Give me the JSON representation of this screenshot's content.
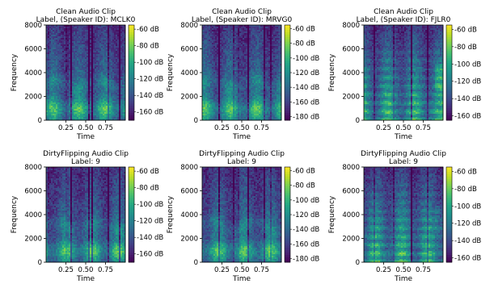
{
  "colors": {
    "colormap": "viridis",
    "axis": "#000000",
    "background": "#ffffff"
  },
  "chart_data": [
    {
      "type": "heatmap",
      "title": "Clean Audio Clip",
      "subtitle": "Label, (Speaker ID): MCLK0",
      "xlabel": "Time",
      "ylabel": "Frequency",
      "x_ticks": [
        "0.25",
        "0.50",
        "0.75"
      ],
      "x_tick_values": [
        0.25,
        0.5,
        0.75
      ],
      "y_ticks": [
        "0",
        "2000",
        "4000",
        "6000",
        "8000"
      ],
      "y_tick_values": [
        0,
        2000,
        4000,
        6000,
        8000
      ],
      "xlim": [
        0,
        1.0
      ],
      "ylim": [
        0,
        8000
      ],
      "colorbar": {
        "label_values": [
          -60,
          -80,
          -100,
          -120,
          -140,
          -160
        ],
        "labels": [
          "-60 dB",
          "-80 dB",
          "-100 dB",
          "-120 dB",
          "-140 dB",
          "-160 dB"
        ],
        "range": [
          -170,
          -55
        ]
      },
      "silence_gaps": [
        0.04,
        0.265,
        0.32,
        0.545,
        0.58,
        0.78,
        0.93
      ],
      "pattern": "voiced"
    },
    {
      "type": "heatmap",
      "title": "Clean Audio Clip",
      "subtitle": "Label, (Speaker ID): MRVG0",
      "xlabel": "Time",
      "ylabel": "Frequency",
      "x_ticks": [
        "0.25",
        "0.50",
        "0.75"
      ],
      "x_tick_values": [
        0.25,
        0.5,
        0.75
      ],
      "y_ticks": [
        "0",
        "2000",
        "4000",
        "6000",
        "8000"
      ],
      "y_tick_values": [
        0,
        2000,
        4000,
        6000,
        8000
      ],
      "xlim": [
        0,
        1.0
      ],
      "ylim": [
        0,
        8000
      ],
      "colorbar": {
        "label_values": [
          -60,
          -80,
          -100,
          -120,
          -140,
          -160,
          -180
        ],
        "labels": [
          "-60 dB",
          "-80 dB",
          "-100 dB",
          "-120 dB",
          "-140 dB",
          "-160 dB",
          "-180 dB"
        ],
        "range": [
          -185,
          -55
        ]
      },
      "silence_gaps": [
        0.21,
        0.39,
        0.45,
        0.585,
        0.78,
        0.875
      ],
      "pattern": "voiced"
    },
    {
      "type": "heatmap",
      "title": "Clean Audio Clip",
      "subtitle": "Label, (Speaker ID): FJLR0",
      "xlabel": "Time",
      "ylabel": "Frequency",
      "x_ticks": [
        "0.25",
        "0.50",
        "0.75"
      ],
      "x_tick_values": [
        0.25,
        0.5,
        0.75
      ],
      "y_ticks": [
        "0",
        "2000",
        "4000",
        "6000",
        "8000"
      ],
      "y_tick_values": [
        0,
        2000,
        4000,
        6000,
        8000
      ],
      "xlim": [
        0,
        1.0
      ],
      "ylim": [
        0,
        8000
      ],
      "colorbar": {
        "label_values": [
          -60,
          -80,
          -100,
          -120,
          -140,
          -160
        ],
        "labels": [
          "-60 dB",
          "-80 dB",
          "-100 dB",
          "-120 dB",
          "-140 dB",
          "-160 dB"
        ],
        "range": [
          -165,
          -55
        ]
      },
      "silence_gaps": [
        0.14,
        0.37,
        0.6,
        0.8
      ],
      "pattern": "harmonic"
    },
    {
      "type": "heatmap",
      "title": "DirtyFlipping Audio Clip",
      "subtitle": "Label: 9",
      "xlabel": "Time",
      "ylabel": "Frequency",
      "x_ticks": [
        "0.25",
        "0.50",
        "0.75"
      ],
      "x_tick_values": [
        0.25,
        0.5,
        0.75
      ],
      "y_ticks": [
        "0",
        "2000",
        "4000",
        "6000",
        "8000"
      ],
      "y_tick_values": [
        0,
        2000,
        4000,
        6000,
        8000
      ],
      "xlim": [
        0,
        1.0
      ],
      "ylim": [
        0,
        8000
      ],
      "colorbar": {
        "label_values": [
          -60,
          -80,
          -100,
          -120,
          -140,
          -160
        ],
        "labels": [
          "-60 dB",
          "-80 dB",
          "-100 dB",
          "-120 dB",
          "-140 dB",
          "-160 dB"
        ],
        "range": [
          -170,
          -55
        ]
      },
      "silence_gaps": [
        0.04,
        0.265,
        0.32,
        0.545,
        0.58,
        0.78,
        0.93
      ],
      "pattern": "voiced"
    },
    {
      "type": "heatmap",
      "title": "DirtyFlipping Audio Clip",
      "subtitle": "Label: 9",
      "xlabel": "Time",
      "ylabel": "Frequency",
      "x_ticks": [
        "0.25",
        "0.50",
        "0.75"
      ],
      "x_tick_values": [
        0.25,
        0.5,
        0.75
      ],
      "y_ticks": [
        "0",
        "2000",
        "4000",
        "6000",
        "8000"
      ],
      "y_tick_values": [
        0,
        2000,
        4000,
        6000,
        8000
      ],
      "xlim": [
        0,
        1.0
      ],
      "ylim": [
        0,
        8000
      ],
      "colorbar": {
        "label_values": [
          -60,
          -80,
          -100,
          -120,
          -140,
          -160,
          -180
        ],
        "labels": [
          "-60 dB",
          "-80 dB",
          "-100 dB",
          "-120 dB",
          "-140 dB",
          "-160 dB",
          "-180 dB"
        ],
        "range": [
          -185,
          -55
        ]
      },
      "silence_gaps": [
        0.21,
        0.39,
        0.45,
        0.585,
        0.78,
        0.875
      ],
      "pattern": "voiced"
    },
    {
      "type": "heatmap",
      "title": "DirtyFlipping Audio Clip",
      "subtitle": "Label: 9",
      "xlabel": "Time",
      "ylabel": "Frequency",
      "x_ticks": [
        "0.25",
        "0.50",
        "0.75"
      ],
      "x_tick_values": [
        0.25,
        0.5,
        0.75
      ],
      "y_ticks": [
        "0",
        "2000",
        "4000",
        "6000",
        "8000"
      ],
      "y_tick_values": [
        0,
        2000,
        4000,
        6000,
        8000
      ],
      "xlim": [
        0,
        1.0
      ],
      "ylim": [
        0,
        8000
      ],
      "colorbar": {
        "label_values": [
          -60,
          -80,
          -100,
          -120,
          -140,
          -160
        ],
        "labels": [
          "-60 dB",
          "-80 dB",
          "-100 dB",
          "-120 dB",
          "-140 dB",
          "-160 dB"
        ],
        "range": [
          -165,
          -55
        ]
      },
      "silence_gaps": [
        0.14,
        0.37,
        0.6,
        0.8
      ],
      "pattern": "harmonic"
    }
  ]
}
